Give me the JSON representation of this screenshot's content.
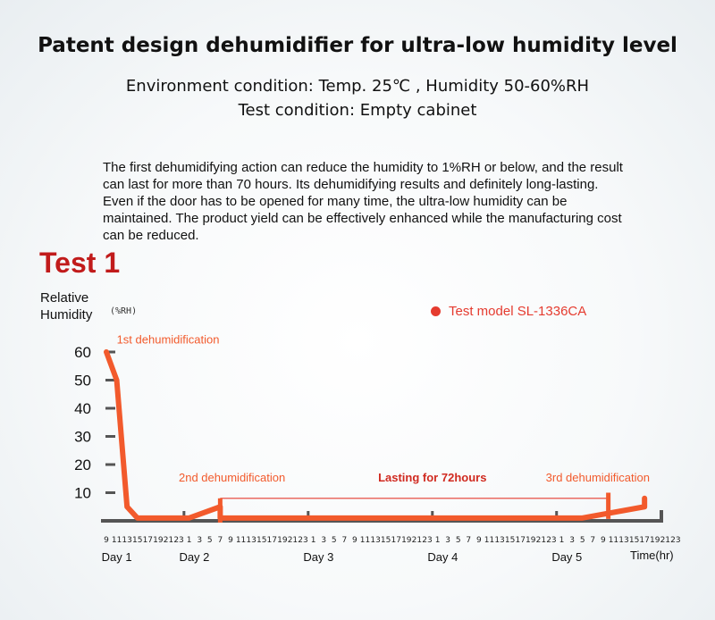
{
  "title": "Patent design dehumidifier for ultra-low humidity level",
  "environment": "Environment condition: Temp. 25℃ , Humidity 50-60%RH",
  "test_condition": "Test condition: Empty cabinet",
  "description": "The first dehumidifying action can reduce the humidity to 1%RH or below, and the result can last for more than 70 hours. Its dehumidifying results and definitely long-lasting. Even if the door has to be opened for many time, the ultra-low humidity can be maintained. The product yield can be effectively enhanced while the manufacturing cost can be reduced.",
  "test_title": "Test 1",
  "colors": {
    "series": "#f25a2c",
    "title_red": "#c11b1b",
    "legend": "#e53b2f",
    "axis": "#555555"
  },
  "chart_data": {
    "type": "line",
    "ylabel_line1": "Relative",
    "ylabel_line2": "Humidity",
    "yunit": "(%RH)",
    "xlabel": "Time(hr)",
    "ylim": [
      0,
      65
    ],
    "yticks": [
      10,
      20,
      30,
      40,
      50,
      60
    ],
    "x_hours": [
      9,
      11,
      13,
      15,
      17,
      19,
      21,
      23,
      1,
      3,
      5,
      7,
      9,
      11,
      13,
      15,
      17,
      19,
      21,
      23,
      1,
      3,
      5,
      7,
      9,
      11,
      13,
      15,
      17,
      19,
      21,
      23,
      1,
      3,
      5,
      7,
      9,
      11,
      13,
      15,
      17,
      19,
      21,
      23,
      1,
      3,
      5,
      7,
      9,
      11,
      13,
      15,
      17,
      19,
      21,
      23
    ],
    "days": [
      "Day 1",
      "Day 2",
      "Day 3",
      "Day 4",
      "Day 5"
    ],
    "series": [
      {
        "name": "Test model SL-1336CA",
        "points": [
          [
            0,
            60
          ],
          [
            1,
            50
          ],
          [
            2,
            5
          ],
          [
            3,
            1
          ],
          [
            5,
            1
          ],
          [
            8,
            1
          ],
          [
            11,
            5
          ],
          [
            11,
            1
          ],
          [
            46,
            1
          ],
          [
            52,
            5
          ],
          [
            52,
            8
          ]
        ]
      }
    ],
    "annotations": [
      {
        "text": "1st dehumidification",
        "x": 1,
        "y": 63
      },
      {
        "text": "2nd dehumidification",
        "x": 11,
        "y": 14
      },
      {
        "text": "Lasting for 72hours",
        "x": 31.5,
        "y": 14
      },
      {
        "text": "3rd dehumidification",
        "x": 47,
        "y": 14
      }
    ]
  }
}
